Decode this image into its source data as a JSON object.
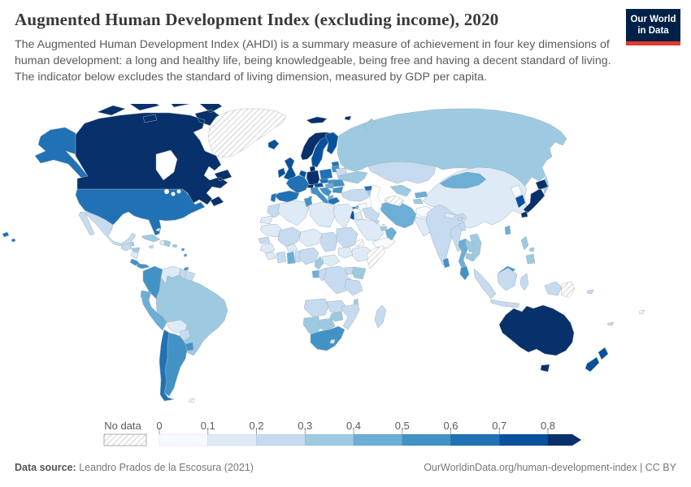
{
  "header": {
    "title": "Augmented Human Development Index (excluding income), 2020",
    "subtitle": "The Augmented Human Development Index (AHDI) is a summary measure of achievement in four key dimensions of human development: a long and healthy life, being knowledgeable, being free and having a decent standard of living. The indicator below excludes the standard of living dimension, measured by GDP per capita.",
    "logo": {
      "line1": "Our World",
      "line2": "in Data",
      "bg_color": "#002147",
      "stripe_color": "#e0392f"
    }
  },
  "legend": {
    "no_data_label": "No data",
    "ticks": [
      "0",
      "0.1",
      "0.2",
      "0.3",
      "0.4",
      "0.5",
      "0.6",
      "0.7",
      "0.8"
    ]
  },
  "footer": {
    "source_label": "Data source:",
    "source_text": "Leandro Prados de la Escosura (2021)",
    "right_text": "OurWorldinData.org/human-development-index | CC BY"
  },
  "chart_data": {
    "type": "choropleth_map",
    "title": "Augmented Human Development Index (excluding income), 2020",
    "unit": "index (0 to 1)",
    "legend_position": "bottom",
    "color_scale": {
      "palette": [
        "#f7fbff",
        "#deebf7",
        "#c6dbef",
        "#9ecae1",
        "#6baed6",
        "#4292c6",
        "#2171b5",
        "#08519c",
        "#08306b"
      ],
      "bins": [
        "0-0.1",
        "0.1-0.2",
        "0.2-0.3",
        "0.3-0.4",
        "0.4-0.5",
        "0.5-0.6",
        "0.6-0.7",
        "0.7-0.8",
        "0.8+"
      ],
      "no_data": "diagonal-hatch"
    },
    "countries": {
      "canada": 8,
      "united-states": 6,
      "greenland": -1,
      "mexico": 2,
      "guatemala": 2,
      "belize": 3,
      "honduras": 3,
      "nicaragua": 1,
      "costa-rica": 5,
      "panama": 5,
      "cuba": 3,
      "jamaica": 2,
      "haiti": 1,
      "dominican-republic": 3,
      "puerto-rico": 3,
      "bahamas": 1,
      "lesser-antilles": 5,
      "trinidad-and-tobago": 5,
      "colombia": 5,
      "venezuela": 1,
      "guyana": 2,
      "suriname": 2,
      "ecuador": 4,
      "peru": 4,
      "brazil": 3,
      "bolivia": 1,
      "paraguay": 2,
      "uruguay": 5,
      "argentina": 5,
      "chile": 6,
      "falkland-islands": -1,
      "iceland": 7,
      "united-kingdom": 7,
      "ireland": 7,
      "norway": 8,
      "svalbard": 8,
      "sweden": 7,
      "finland": 7,
      "denmark": 8,
      "estonia": 6,
      "latvia-lithuania": 5,
      "belarus": 2,
      "poland": 6,
      "germany": 8,
      "netherlands-belgium": 7,
      "france": 6,
      "spain": 6,
      "portugal": 6,
      "switzerland": 8,
      "austria": 7,
      "czechia": 6,
      "slovakia": 5,
      "hungary": 4,
      "italy": 5,
      "croatia-serbia": 5,
      "albania-north-macedonia": 4,
      "greece": 6,
      "romania": 5,
      "bulgaria": 5,
      "moldova": 3,
      "ukraine": 3,
      "russia": 3,
      "turkey": 2,
      "georgia": 6,
      "armenia": 3,
      "azerbaijan": 2,
      "cyprus": 6,
      "syria": 0,
      "lebanon": 4,
      "israel": 7,
      "jordan": 1,
      "iraq": 2,
      "saudi-arabia": 1,
      "kuwait": 2,
      "qatar": 1,
      "united-arab-emirates": 3,
      "yemen": 0,
      "oman": 4,
      "iran": 4,
      "afghanistan": 0,
      "pakistan": 1,
      "turkmenistan": -1,
      "uzbekistan": 3,
      "kazakhstan": 2,
      "kyrgyzstan": 4,
      "tajikistan": 3,
      "india": 2,
      "nepal": 1,
      "bhutan": 2,
      "bangladesh": 2,
      "sri-lanka": 5,
      "china": 1,
      "mongolia": 4,
      "north-korea": 0,
      "south-korea": 7,
      "japan": 8,
      "taiwan": 4,
      "myanmar": 2,
      "thailand": 4,
      "laos": 3,
      "vietnam": 3,
      "cambodia": 3,
      "malaysia": 5,
      "indonesia": 2,
      "philippines": 3,
      "papua-new-guinea": -1,
      "australia": 8,
      "new-zealand": 7,
      "new-caledonia": 2,
      "solomon-islands": 2,
      "fiji": -1,
      "morocco": 2,
      "western-sahara": 1,
      "algeria": 1,
      "tunisia": 5,
      "libya": 1,
      "egypt": 1,
      "mauritania": 1,
      "senegal": 2,
      "guinea": 1,
      "sierra-leone-liberia": 1,
      "mali": 2,
      "burkina-faso": 1,
      "cote-divoire": 2,
      "ghana": 4,
      "togo-benin": 2,
      "niger": 1,
      "nigeria": 2,
      "chad": 2,
      "sudan": 2,
      "eritrea": -1,
      "djibouti": 4,
      "ethiopia": 1,
      "somalia": -1,
      "south-sudan": 1,
      "cameroon": 3,
      "central-african-republic": 1,
      "gabon": 4,
      "congo": 2,
      "democratic-republic-of-congo": 2,
      "uganda": 2,
      "kenya": 3,
      "tanzania": 2,
      "angola": 2,
      "zambia": 2,
      "malawi": 3,
      "mozambique": 2,
      "zimbabwe": 3,
      "botswana": 3,
      "namibia": 3,
      "south-africa": 5,
      "lesotho": 1,
      "madagascar": 2
    }
  }
}
